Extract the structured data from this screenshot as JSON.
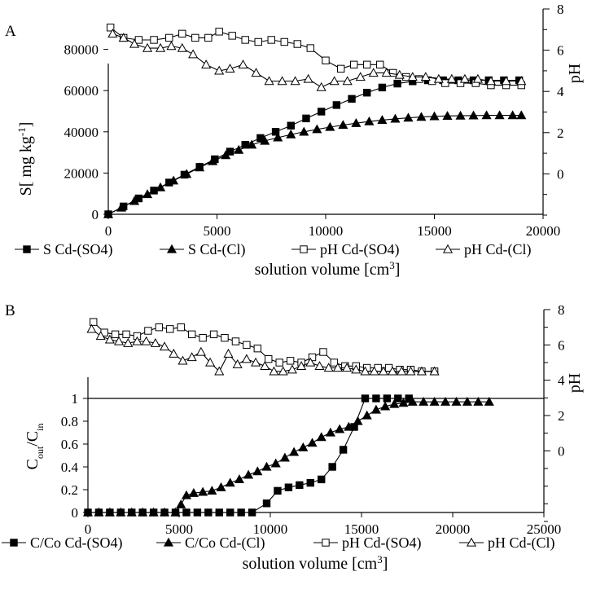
{
  "chart_data": [
    {
      "type": "line",
      "panel_label": "A",
      "xlabel": "solution volume [cm",
      "xlabel_sup": "3",
      "xlabel_end": "]",
      "ylabel": "S[ mg kg",
      "ylabel_sup": "-1",
      "ylabel_end": "]",
      "y2label": "pH",
      "xlim": [
        0,
        20000
      ],
      "ylim": [
        0,
        100000
      ],
      "y2lim": [
        -2,
        8
      ],
      "xticks": [
        0,
        5000,
        10000,
        15000,
        20000
      ],
      "yticks": [
        0,
        20000,
        40000,
        60000,
        80000
      ],
      "y2ticks": [
        0,
        2,
        4,
        6,
        8
      ],
      "series": [
        {
          "name": "S Cd-(SO4)",
          "axis": "y",
          "marker": "square-filled",
          "x": [
            0,
            700,
            1400,
            2100,
            2800,
            3500,
            4200,
            4900,
            5600,
            6300,
            7000,
            7700,
            8400,
            9100,
            9800,
            10500,
            11200,
            11900,
            12600,
            13300,
            14000,
            14700,
            15400,
            16100,
            16800,
            17500,
            18200,
            18900
          ],
          "y": [
            0,
            3800,
            7700,
            11500,
            15400,
            19200,
            23000,
            26700,
            30400,
            33700,
            37000,
            40000,
            43000,
            46500,
            49800,
            53000,
            56000,
            59000,
            61500,
            63400,
            64500,
            65000,
            65000,
            65000,
            65000,
            65000,
            65000,
            65000
          ]
        },
        {
          "name": "S Cd-(Cl)",
          "axis": "y",
          "marker": "triangle-filled",
          "x": [
            0,
            600,
            1200,
            1800,
            2400,
            3000,
            3600,
            4200,
            4800,
            5400,
            6000,
            6600,
            7200,
            7800,
            8400,
            9000,
            9600,
            10200,
            10800,
            11400,
            12000,
            12600,
            13200,
            13800,
            14400,
            15000,
            15600,
            16200,
            16800,
            17400,
            18000,
            18600,
            19000
          ],
          "y": [
            0,
            3200,
            6400,
            9700,
            13000,
            16300,
            19500,
            22700,
            25700,
            28600,
            31200,
            33700,
            35600,
            37200,
            38700,
            40000,
            41200,
            42300,
            43300,
            44200,
            45000,
            45700,
            46300,
            46800,
            47200,
            47500,
            47700,
            47800,
            47900,
            48000,
            48000,
            48000,
            48000
          ]
        },
        {
          "name": "pH Cd-(SO4)",
          "axis": "y2",
          "marker": "square-open",
          "x": [
            100,
            700,
            1400,
            2100,
            2800,
            3400,
            4000,
            4600,
            5100,
            5700,
            6300,
            6900,
            7500,
            8100,
            8700,
            9300,
            10000,
            10700,
            11300,
            11900,
            12500,
            13100,
            13700,
            14300,
            14900,
            15500,
            16200,
            16900,
            17600,
            18300,
            19000
          ],
          "y": [
            7.1,
            6.6,
            6.5,
            6.5,
            6.6,
            6.8,
            6.6,
            6.6,
            6.9,
            6.7,
            6.5,
            6.4,
            6.5,
            6.4,
            6.3,
            6.1,
            5.5,
            5.1,
            5.3,
            5.3,
            5.3,
            4.9,
            4.7,
            4.6,
            4.5,
            4.4,
            4.4,
            4.4,
            4.3,
            4.3,
            4.3
          ]
        },
        {
          "name": "pH Cd-(Cl)",
          "axis": "y2",
          "marker": "triangle-open",
          "x": [
            200,
            700,
            1200,
            1800,
            2400,
            2900,
            3400,
            3900,
            4500,
            5100,
            5600,
            6200,
            6800,
            7400,
            8000,
            8600,
            9200,
            9800,
            10400,
            11000,
            11600,
            12200,
            12800,
            13400,
            14000,
            14600,
            15200,
            15800,
            16400,
            17000,
            17600,
            18300,
            19000
          ],
          "y": [
            6.8,
            6.6,
            6.3,
            6.1,
            6.1,
            6.2,
            6.1,
            5.8,
            5.3,
            5.0,
            5.1,
            5.3,
            4.9,
            4.5,
            4.5,
            4.5,
            4.6,
            4.2,
            4.5,
            4.5,
            4.7,
            4.9,
            4.9,
            4.8,
            4.7,
            4.7,
            4.6,
            4.6,
            4.6,
            4.6,
            4.5,
            4.5,
            4.5
          ]
        }
      ]
    },
    {
      "type": "line",
      "panel_label": "B",
      "xlabel": "solution volume [cm",
      "xlabel_sup": "3",
      "xlabel_end": "]",
      "ylabel_main": "C",
      "ylabel_sub1": "out",
      "ylabel_slash": "/C",
      "ylabel_sub2": "in",
      "y2label": "pH",
      "xlim": [
        0,
        25000
      ],
      "ylim": [
        0,
        1.85
      ],
      "y2lim": [
        -4,
        8
      ],
      "xticks": [
        0,
        5000,
        10000,
        15000,
        20000,
        25000
      ],
      "yticks": [
        0,
        0.2,
        0.4,
        0.6,
        0.8,
        1
      ],
      "y2ticks": [
        0,
        2,
        4,
        6,
        8
      ],
      "reference_line": 1,
      "series": [
        {
          "name": "C/Co Cd-(SO4)",
          "axis": "y",
          "marker": "square-filled",
          "x": [
            0,
            600,
            1200,
            1800,
            2400,
            3000,
            3600,
            4200,
            4800,
            5400,
            6000,
            6600,
            7200,
            7800,
            8400,
            9000,
            9800,
            10400,
            11000,
            11600,
            12200,
            12800,
            13400,
            14000,
            14600,
            15200,
            15800,
            16400,
            17000,
            17600
          ],
          "y": [
            0,
            0,
            0,
            0,
            0,
            0,
            0,
            0,
            0,
            0,
            0,
            0,
            0,
            0,
            0,
            0,
            0.08,
            0.19,
            0.22,
            0.24,
            0.26,
            0.29,
            0.4,
            0.55,
            0.75,
            1.0,
            1.0,
            1.0,
            1.0,
            1.0
          ]
        },
        {
          "name": "C/Co Cd-(Cl)",
          "axis": "y",
          "marker": "triangle-filled",
          "x": [
            0,
            600,
            1200,
            1800,
            2400,
            3000,
            3600,
            4200,
            4800,
            5100,
            5400,
            5800,
            6300,
            6800,
            7300,
            7800,
            8300,
            8800,
            9300,
            9800,
            10300,
            10800,
            11300,
            11800,
            12300,
            12800,
            13300,
            13800,
            14300,
            14800,
            15300,
            15800,
            16300,
            16800,
            17300,
            17800,
            18400,
            19000,
            19600,
            20200,
            20800,
            21400,
            22000
          ],
          "y": [
            0,
            0,
            0,
            0,
            0,
            0,
            0,
            0,
            0,
            0.07,
            0.15,
            0.17,
            0.18,
            0.19,
            0.22,
            0.26,
            0.29,
            0.33,
            0.36,
            0.4,
            0.43,
            0.48,
            0.53,
            0.57,
            0.61,
            0.66,
            0.7,
            0.73,
            0.75,
            0.8,
            0.85,
            0.9,
            0.93,
            0.95,
            0.96,
            0.97,
            0.97,
            0.97,
            0.97,
            0.97,
            0.97,
            0.97,
            0.97
          ]
        },
        {
          "name": "pH Cd-(SO4)",
          "axis": "y2",
          "marker": "square-open",
          "x": [
            300,
            900,
            1500,
            2100,
            2700,
            3300,
            3900,
            4500,
            5100,
            5700,
            6300,
            6900,
            7500,
            8100,
            8700,
            9300,
            9900,
            10500,
            11100,
            11700,
            12300,
            12900,
            13500,
            14100,
            14700,
            15300,
            15900,
            16500,
            17100,
            17700,
            18300,
            19000
          ],
          "y": [
            7.3,
            6.7,
            6.6,
            6.6,
            6.5,
            6.8,
            7.0,
            6.9,
            7.0,
            6.6,
            6.4,
            6.6,
            6.4,
            6.2,
            6.0,
            5.8,
            5.2,
            5.0,
            5.1,
            5.0,
            5.3,
            5.6,
            5.0,
            4.8,
            4.8,
            4.7,
            4.7,
            4.7,
            4.6,
            4.6,
            4.5,
            4.5
          ]
        },
        {
          "name": "pH Cd-(Cl)",
          "axis": "y2",
          "marker": "triangle-open",
          "x": [
            200,
            700,
            1200,
            1700,
            2200,
            2700,
            3200,
            3700,
            4200,
            4700,
            5200,
            5700,
            6200,
            6700,
            7200,
            7700,
            8200,
            8700,
            9200,
            9700,
            10200,
            10700,
            11200,
            11700,
            12200,
            12700,
            13200,
            13700,
            14200,
            14700,
            15200,
            15700,
            16200,
            16700,
            17200,
            17700,
            18300,
            19000
          ],
          "y": [
            6.9,
            6.5,
            6.3,
            6.2,
            6.1,
            6.2,
            6.2,
            6.1,
            5.9,
            5.5,
            5.1,
            5.3,
            5.6,
            5.0,
            4.5,
            5.5,
            4.9,
            5.2,
            5.0,
            4.8,
            4.5,
            4.5,
            4.6,
            4.8,
            5.0,
            4.8,
            4.7,
            4.7,
            4.7,
            4.6,
            4.5,
            4.5,
            4.5,
            4.5,
            4.5,
            4.5,
            4.5,
            4.5
          ]
        }
      ]
    }
  ]
}
